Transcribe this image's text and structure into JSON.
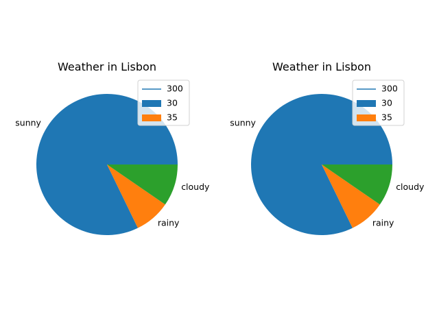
{
  "chart_data": [
    {
      "type": "pie",
      "title": "Weather in Lisbon",
      "slices": [
        {
          "label": "sunny",
          "value": 300,
          "color": "#1f77b4"
        },
        {
          "label": "rainy",
          "value": 30,
          "color": "#ff7f0e"
        },
        {
          "label": "cloudy",
          "value": 35,
          "color": "#2ca02c"
        }
      ],
      "legend": {
        "placement": "upper right",
        "entries": [
          {
            "label": "300",
            "kind": "line",
            "color": "#1f77b4"
          },
          {
            "label": "30",
            "kind": "patch",
            "color": "#1f77b4"
          },
          {
            "label": "35",
            "kind": "patch",
            "color": "#ff7f0e"
          }
        ]
      }
    },
    {
      "type": "pie",
      "title": "Weather in Lisbon",
      "slices": [
        {
          "label": "sunny",
          "value": 300,
          "color": "#1f77b4"
        },
        {
          "label": "rainy",
          "value": 30,
          "color": "#ff7f0e"
        },
        {
          "label": "cloudy",
          "value": 35,
          "color": "#2ca02c"
        }
      ],
      "legend": {
        "placement": "upper right",
        "entries": [
          {
            "label": "300",
            "kind": "line",
            "color": "#1f77b4"
          },
          {
            "label": "30",
            "kind": "patch",
            "color": "#1f77b4"
          },
          {
            "label": "35",
            "kind": "patch",
            "color": "#ff7f0e"
          }
        ]
      }
    }
  ]
}
